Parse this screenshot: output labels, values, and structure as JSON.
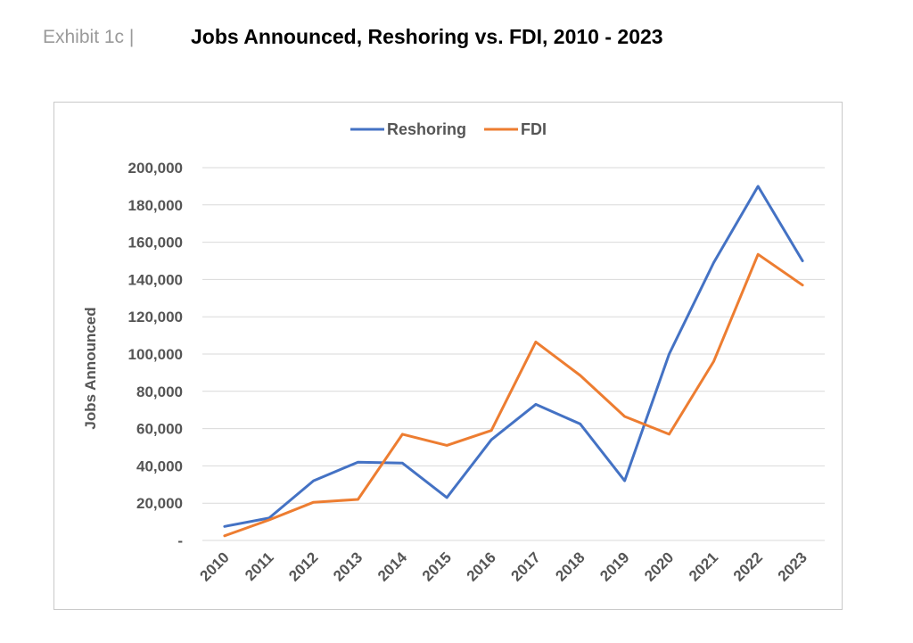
{
  "header": {
    "exhibit": "Exhibit 1c |",
    "title": "Jobs Announced, Reshoring vs. FDI, 2010 - 2023"
  },
  "chart_data": {
    "type": "line",
    "title": "Jobs Announced, Reshoring vs. FDI, 2010 - 2023",
    "xlabel": "",
    "ylabel": "Jobs Announced",
    "categories": [
      "2010",
      "2011",
      "2012",
      "2013",
      "2014",
      "2015",
      "2016",
      "2017",
      "2018",
      "2019",
      "2020",
      "2021",
      "2022",
      "2023"
    ],
    "ylim": [
      0,
      200000
    ],
    "yticks": [
      0,
      20000,
      40000,
      60000,
      80000,
      100000,
      120000,
      140000,
      160000,
      180000,
      200000
    ],
    "ytick_labels": [
      "-",
      "20,000",
      "40,000",
      "60,000",
      "80,000",
      "100,000",
      "120,000",
      "140,000",
      "160,000",
      "180,000",
      "200,000"
    ],
    "grid": true,
    "legend_position": "top-center",
    "series": [
      {
        "name": "Reshoring",
        "color": "#4472C4",
        "values": [
          7500,
          12000,
          32000,
          42000,
          41500,
          23000,
          54000,
          73000,
          62500,
          32000,
          100000,
          149000,
          190000,
          150000
        ]
      },
      {
        "name": "FDI",
        "color": "#ED7D31",
        "values": [
          2500,
          11000,
          20500,
          22000,
          57000,
          51000,
          59000,
          106500,
          88500,
          66500,
          57000,
          96000,
          153500,
          137000
        ]
      }
    ]
  }
}
